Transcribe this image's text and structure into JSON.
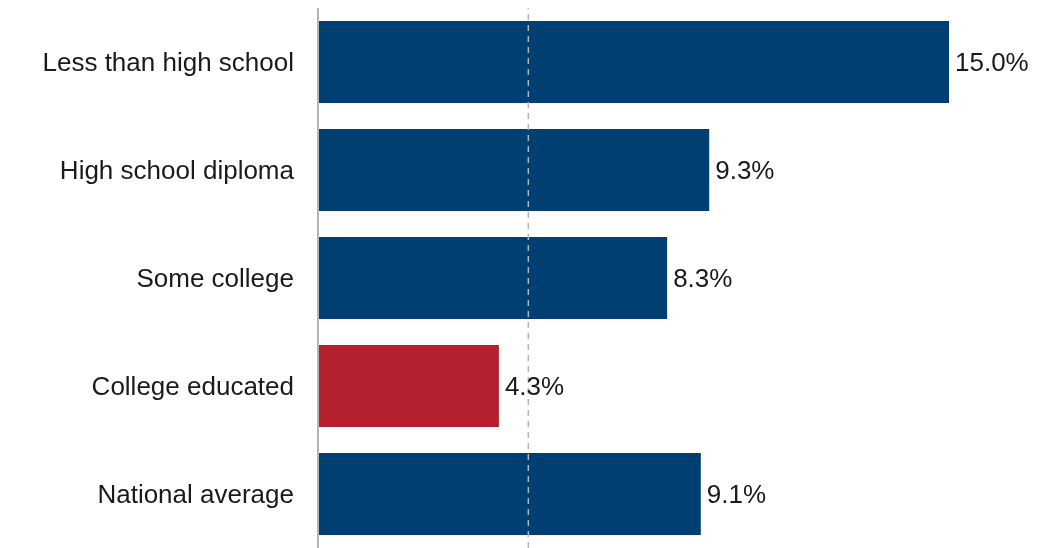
{
  "chart_data": {
    "type": "bar",
    "orientation": "horizontal",
    "categories": [
      "Less than high school",
      "High school diploma",
      "Some college",
      "College educated",
      "National average"
    ],
    "values": [
      15.0,
      9.3,
      8.3,
      4.3,
      9.1
    ],
    "colors": [
      "#003f72",
      "#003f72",
      "#003f72",
      "#b5202e",
      "#003f72"
    ],
    "value_labels": [
      "15.0%",
      "9.3%",
      "8.3%",
      "4.3%",
      "9.1%"
    ],
    "grid": false,
    "legend": false,
    "tick_labels": "y",
    "ref_lines": [
      {
        "axis": "x",
        "value": 5,
        "label": null,
        "color": "#b4b4b4",
        "line_style": "dashed"
      }
    ]
  }
}
